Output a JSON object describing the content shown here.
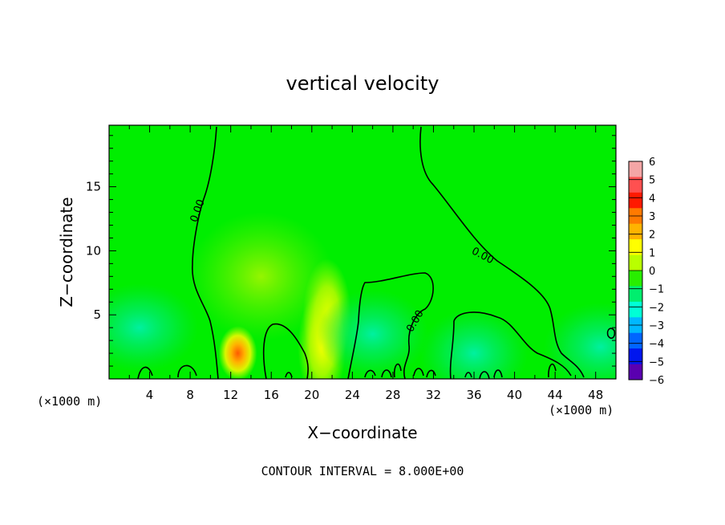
{
  "chart_data": {
    "type": "heatmap",
    "title": "vertical velocity",
    "xlabel": "X−coordinate",
    "ylabel": "Z−coordinate",
    "x_unit": "(×1000 m)",
    "y_unit": "(×1000 m)",
    "xlim": [
      0,
      50
    ],
    "ylim": [
      0,
      19.8
    ],
    "x_ticks": [
      4,
      8,
      12,
      16,
      20,
      24,
      28,
      32,
      36,
      40,
      44,
      48
    ],
    "y_ticks": [
      5,
      10,
      15
    ],
    "footer": "CONTOUR INTERVAL = 8.000E+00",
    "contour_label": "0.00",
    "colorbar": {
      "levels": [
        "6",
        "5",
        "4",
        "3",
        "2",
        "1",
        "0",
        "−1",
        "−2",
        "−3",
        "−4",
        "−5",
        "−6"
      ],
      "colors": [
        "#f4a6a6",
        "#ff5050",
        "#ff1a00",
        "#ff7a00",
        "#ffb300",
        "#ffff00",
        "#b9ff00",
        "#28ee00",
        "#00ee6e",
        "#00ffd6",
        "#00b8ff",
        "#0066ff",
        "#0016ee",
        "#5a00b0"
      ]
    },
    "features": [
      {
        "x": 12.7,
        "z": 2.0,
        "w": 3.5
      },
      {
        "x": 21.5,
        "z": 5.0,
        "w": 1.6
      },
      {
        "x": 15.0,
        "z": 8.0,
        "w": 0.9
      },
      {
        "x": 21.0,
        "z": 2.5,
        "w": 1.2
      },
      {
        "x": 3.0,
        "z": 4.0,
        "w": -1.5
      },
      {
        "x": 26.0,
        "z": 3.5,
        "w": -1.2
      },
      {
        "x": 36.0,
        "z": 2.0,
        "w": -1.0
      },
      {
        "x": 48.5,
        "z": 2.5,
        "w": -1.3
      }
    ]
  }
}
